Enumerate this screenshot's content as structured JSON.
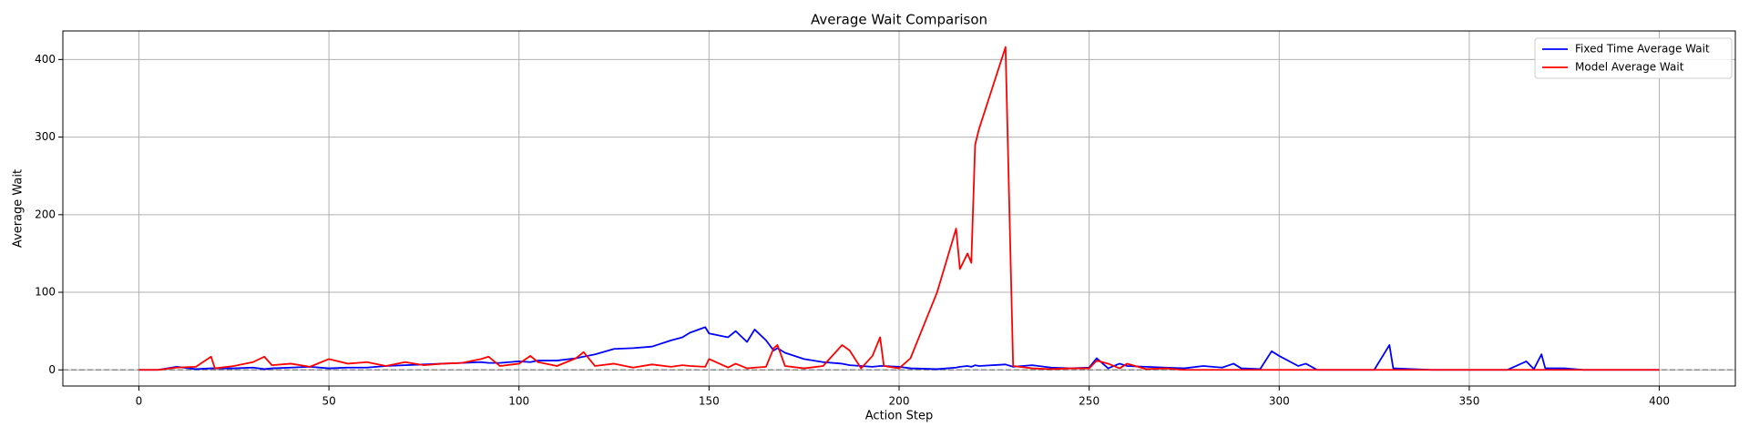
{
  "chart_data": {
    "type": "line",
    "title": "Average Wait Comparison",
    "x_label": "Action Step",
    "y_label": "Average Wait",
    "x": [
      0,
      5,
      10,
      15,
      19,
      20,
      25,
      30,
      33,
      35,
      40,
      45,
      50,
      55,
      60,
      65,
      70,
      75,
      80,
      85,
      90,
      92,
      95,
      100,
      103,
      105,
      110,
      115,
      117,
      120,
      125,
      130,
      135,
      140,
      143,
      145,
      149,
      150,
      155,
      157,
      160,
      162,
      165,
      167,
      168,
      170,
      175,
      180,
      185,
      187,
      190,
      193,
      195,
      196,
      200,
      203,
      210,
      215,
      216,
      218,
      219,
      220,
      221,
      228,
      230,
      235,
      240,
      245,
      250,
      252,
      255,
      258,
      260,
      265,
      270,
      275,
      280,
      285,
      288,
      290,
      295,
      298,
      300,
      305,
      307,
      310,
      320,
      325,
      329,
      330,
      340,
      350,
      360,
      365,
      367,
      369,
      370,
      375,
      380,
      390,
      400
    ],
    "series": [
      {
        "name": "Fixed Time Average Wait",
        "color": "#0000ff",
        "values": [
          0,
          0,
          4,
          1,
          2,
          2,
          2,
          3,
          1,
          2,
          3,
          4,
          2,
          3,
          3,
          5,
          6,
          7,
          8,
          9,
          10,
          9,
          9,
          11,
          10,
          12,
          12,
          15,
          17,
          20,
          27,
          28,
          30,
          38,
          42,
          48,
          55,
          47,
          42,
          50,
          36,
          52,
          38,
          25,
          28,
          22,
          14,
          10,
          8,
          6,
          5,
          4,
          5,
          5,
          4,
          2,
          1,
          3,
          4,
          5,
          4,
          6,
          5,
          7,
          4,
          6,
          3,
          2,
          3,
          15,
          2,
          8,
          5,
          4,
          3,
          2,
          5,
          3,
          8,
          2,
          1,
          24,
          18,
          5,
          8,
          0,
          0,
          0,
          32,
          2,
          0,
          0,
          0,
          11,
          1,
          20,
          2,
          2,
          0,
          0,
          0
        ]
      },
      {
        "name": "Model Average Wait",
        "color": "#ff0000",
        "values": [
          0,
          0,
          3,
          4,
          17,
          2,
          5,
          10,
          17,
          6,
          8,
          4,
          14,
          8,
          10,
          5,
          10,
          6,
          8,
          9,
          14,
          17,
          5,
          8,
          18,
          10,
          5,
          15,
          23,
          5,
          8,
          3,
          7,
          4,
          6,
          5,
          4,
          14,
          3,
          8,
          2,
          3,
          4,
          28,
          32,
          5,
          2,
          5,
          32,
          25,
          2,
          18,
          42,
          5,
          2,
          15,
          100,
          182,
          130,
          150,
          138,
          290,
          310,
          416,
          5,
          2,
          1,
          2,
          2,
          12,
          8,
          2,
          8,
          1,
          2,
          0,
          0,
          0,
          0,
          0,
          0,
          0,
          0,
          0,
          0,
          0,
          0,
          0,
          0,
          0,
          0,
          0,
          0,
          0,
          0,
          0,
          0,
          0,
          0,
          0,
          0
        ]
      }
    ],
    "xlim": [
      -20,
      420
    ],
    "ylim": [
      -20.8,
      436.8
    ],
    "xticks": [
      0,
      50,
      100,
      150,
      200,
      250,
      300,
      350,
      400
    ],
    "yticks": [
      0,
      100,
      200,
      300,
      400
    ],
    "grid": true,
    "legend": "upper-right",
    "hline": 0,
    "hline_color": "#808080"
  }
}
